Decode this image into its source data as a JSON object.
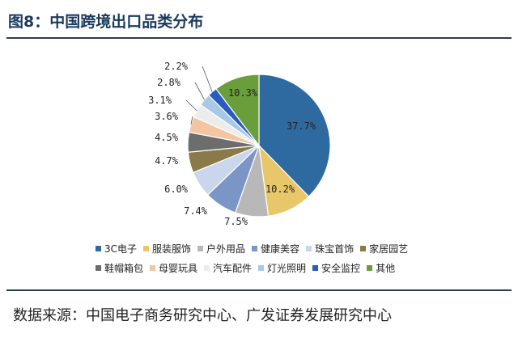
{
  "figure": {
    "title": "图8：中国跨境出口品类分布",
    "source": "数据来源：中国电子商务研究中心、广发证券发展研究中心"
  },
  "chart_data": {
    "type": "pie",
    "title": "",
    "slices": [
      {
        "label": "3C电子",
        "value": 37.7,
        "color": "#2e6aa0",
        "display": "37.7%"
      },
      {
        "label": "服装服饰",
        "value": 10.2,
        "color": "#e8c76a",
        "display": "10.2%"
      },
      {
        "label": "户外用品",
        "value": 7.5,
        "color": "#b8b8b8",
        "display": "7.5%"
      },
      {
        "label": "健康美容",
        "value": 7.4,
        "color": "#7b95c6",
        "display": "7.4%"
      },
      {
        "label": "珠宝首饰",
        "value": 6.0,
        "color": "#c9d6ec",
        "display": "6.0%"
      },
      {
        "label": "家居园艺",
        "value": 4.7,
        "color": "#8a7a4a",
        "display": "4.7%"
      },
      {
        "label": "鞋帽箱包",
        "value": 4.5,
        "color": "#6d6d6d",
        "display": "4.5%"
      },
      {
        "label": "母婴玩具",
        "value": 3.6,
        "color": "#f3c6a2",
        "display": "3.6%"
      },
      {
        "label": "汽车配件",
        "value": 3.1,
        "color": "#ececec",
        "display": "3.1%"
      },
      {
        "label": "灯光照明",
        "value": 2.8,
        "color": "#a9c8e6",
        "display": "2.8%"
      },
      {
        "label": "安全监控",
        "value": 2.2,
        "color": "#2a5bbf",
        "display": "2.2%"
      },
      {
        "label": "其他",
        "value": 10.3,
        "color": "#6a9e3b",
        "display": "10.3%"
      }
    ],
    "legend_position": "bottom"
  },
  "legend": {
    "rows": [
      [
        0,
        1,
        2,
        3,
        4,
        5
      ],
      [
        6,
        7,
        8,
        9,
        10,
        11
      ]
    ]
  }
}
